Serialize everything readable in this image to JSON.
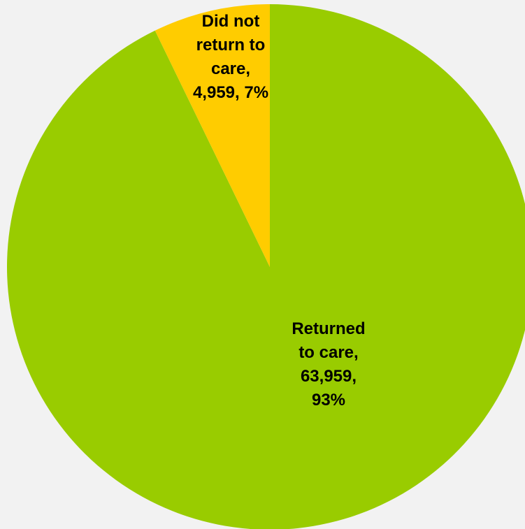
{
  "page": {
    "background_color": "#f2f2f2"
  },
  "chart_data": {
    "type": "pie",
    "title": "",
    "legend": false,
    "start_angle_deg": 0,
    "direction": "counterclockwise",
    "slices": [
      {
        "category": "Returned to care",
        "value": 63959,
        "percent": 93,
        "color": "#99cc00",
        "label_lines": [
          "Returned",
          "to care,",
          "63,959,",
          "93%"
        ]
      },
      {
        "category": "Did not return to care",
        "value": 4959,
        "percent": 7,
        "color": "#ffcc00",
        "label_lines": [
          "Did not",
          "return to",
          "care,",
          "4,959, 7%"
        ]
      }
    ]
  }
}
